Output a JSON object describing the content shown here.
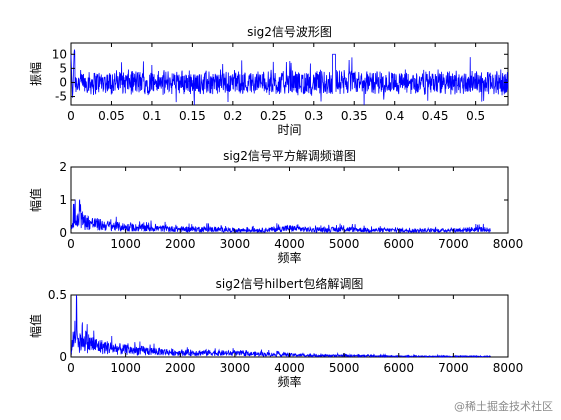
{
  "chart_data": [
    {
      "type": "line",
      "title": "sig2信号波形图",
      "xlabel": "时间",
      "ylabel": "振幅",
      "xlim": [
        0,
        0.54
      ],
      "ylim": [
        -8,
        14
      ],
      "xticks": [
        "0",
        "0.05",
        "0.1",
        "0.15",
        "0.2",
        "0.25",
        "0.3",
        "0.35",
        "0.4",
        "0.45",
        "0.5"
      ],
      "xtick_values": [
        0,
        0.05,
        0.1,
        0.15,
        0.2,
        0.25,
        0.3,
        0.35,
        0.4,
        0.45,
        0.5
      ],
      "yticks": [
        "-5",
        "0",
        "5",
        "10"
      ],
      "ytick_values": [
        -5,
        0,
        5,
        10
      ],
      "series": [
        {
          "color": "#0000ff",
          "x": [
            0,
            0.002,
            0.004,
            0.01,
            0.03,
            0.05,
            0.08,
            0.1,
            0.12,
            0.15,
            0.18,
            0.2,
            0.22,
            0.25,
            0.28,
            0.3,
            0.32,
            0.325,
            0.33,
            0.35,
            0.38,
            0.4,
            0.42,
            0.45,
            0.48,
            0.5,
            0.52,
            0.54
          ],
          "y": [
            10,
            -6,
            12,
            4,
            -5,
            5,
            -4,
            6,
            -5,
            5,
            -4,
            5,
            -5,
            4,
            -5,
            5,
            -4,
            10,
            -6,
            5,
            -5,
            5,
            -4,
            5,
            -5,
            4,
            -5,
            4
          ]
        }
      ]
    },
    {
      "type": "line",
      "title": "sig2信号平方解调频谱图",
      "xlabel": "频率",
      "ylabel": "幅值",
      "xlim": [
        0,
        8000
      ],
      "ylim": [
        0,
        2
      ],
      "xticks": [
        "0",
        "1000",
        "2000",
        "3000",
        "4000",
        "5000",
        "6000",
        "7000",
        "8000"
      ],
      "xtick_values": [
        0,
        1000,
        2000,
        3000,
        4000,
        5000,
        6000,
        7000,
        8000
      ],
      "yticks": [
        "0",
        "1",
        "2"
      ],
      "ytick_values": [
        0,
        1,
        2
      ],
      "series": [
        {
          "color": "#0000ff",
          "x": [
            0,
            50,
            100,
            150,
            250,
            400,
            600,
            1000,
            1500,
            2000,
            2500,
            3000,
            3500,
            4000,
            4500,
            5000,
            5500,
            6000,
            6500,
            7000,
            7500,
            7680
          ],
          "y": [
            0.05,
            1.1,
            0.5,
            0.8,
            0.6,
            0.5,
            0.4,
            0.3,
            0.25,
            0.2,
            0.2,
            0.15,
            0.15,
            0.25,
            0.15,
            0.2,
            0.15,
            0.15,
            0.12,
            0.15,
            0.2,
            0.15
          ]
        }
      ]
    },
    {
      "type": "line",
      "title": "sig2信号hilbert包络解调图",
      "xlabel": "频率",
      "ylabel": "幅值",
      "xlim": [
        0,
        8000
      ],
      "ylim": [
        0,
        0.5
      ],
      "xticks": [
        "0",
        "1000",
        "2000",
        "3000",
        "4000",
        "5000",
        "6000",
        "7000",
        "8000"
      ],
      "xtick_values": [
        0,
        1000,
        2000,
        3000,
        4000,
        5000,
        6000,
        7000,
        8000
      ],
      "yticks": [
        "0",
        "0.5"
      ],
      "ytick_values": [
        0,
        0.5
      ],
      "series": [
        {
          "color": "#0000ff",
          "x": [
            0,
            50,
            100,
            150,
            200,
            300,
            500,
            800,
            1000,
            1500,
            2000,
            2500,
            3000,
            3500,
            4000,
            4500,
            5000,
            5500,
            6000,
            6500,
            7000,
            7500,
            7680
          ],
          "y": [
            0.02,
            0.3,
            0.45,
            0.15,
            0.3,
            0.2,
            0.15,
            0.12,
            0.1,
            0.08,
            0.06,
            0.06,
            0.05,
            0.04,
            0.03,
            0.02,
            0.02,
            0.015,
            0.01,
            0.01,
            0.01,
            0.01,
            0.01
          ]
        }
      ]
    }
  ],
  "watermark": "@稀土掘金技术社区"
}
